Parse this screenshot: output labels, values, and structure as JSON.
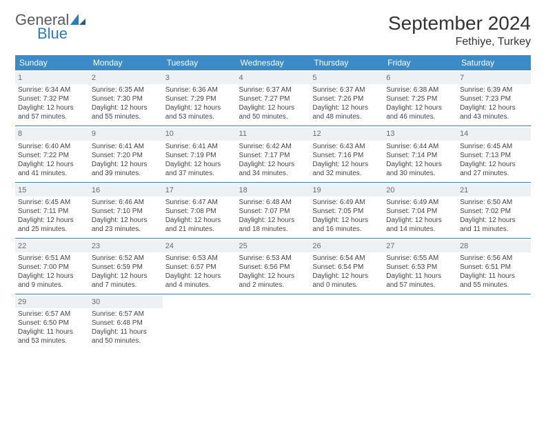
{
  "logo": {
    "general": "General",
    "blue": "Blue"
  },
  "title": "September 2024",
  "location": "Fethiye, Turkey",
  "colors": {
    "header_bg": "#3b8bc9",
    "header_text": "#ffffff",
    "daynum_bg": "#eef1f3",
    "row_border": "#3b7aa8",
    "logo_gray": "#5a5a5a",
    "logo_blue": "#2b7bbf"
  },
  "weekdays": [
    "Sunday",
    "Monday",
    "Tuesday",
    "Wednesday",
    "Thursday",
    "Friday",
    "Saturday"
  ],
  "weeks": [
    [
      {
        "day": "1",
        "sunrise": "Sunrise: 6:34 AM",
        "sunset": "Sunset: 7:32 PM",
        "dl1": "Daylight: 12 hours",
        "dl2": "and 57 minutes."
      },
      {
        "day": "2",
        "sunrise": "Sunrise: 6:35 AM",
        "sunset": "Sunset: 7:30 PM",
        "dl1": "Daylight: 12 hours",
        "dl2": "and 55 minutes."
      },
      {
        "day": "3",
        "sunrise": "Sunrise: 6:36 AM",
        "sunset": "Sunset: 7:29 PM",
        "dl1": "Daylight: 12 hours",
        "dl2": "and 53 minutes."
      },
      {
        "day": "4",
        "sunrise": "Sunrise: 6:37 AM",
        "sunset": "Sunset: 7:27 PM",
        "dl1": "Daylight: 12 hours",
        "dl2": "and 50 minutes."
      },
      {
        "day": "5",
        "sunrise": "Sunrise: 6:37 AM",
        "sunset": "Sunset: 7:26 PM",
        "dl1": "Daylight: 12 hours",
        "dl2": "and 48 minutes."
      },
      {
        "day": "6",
        "sunrise": "Sunrise: 6:38 AM",
        "sunset": "Sunset: 7:25 PM",
        "dl1": "Daylight: 12 hours",
        "dl2": "and 46 minutes."
      },
      {
        "day": "7",
        "sunrise": "Sunrise: 6:39 AM",
        "sunset": "Sunset: 7:23 PM",
        "dl1": "Daylight: 12 hours",
        "dl2": "and 43 minutes."
      }
    ],
    [
      {
        "day": "8",
        "sunrise": "Sunrise: 6:40 AM",
        "sunset": "Sunset: 7:22 PM",
        "dl1": "Daylight: 12 hours",
        "dl2": "and 41 minutes."
      },
      {
        "day": "9",
        "sunrise": "Sunrise: 6:41 AM",
        "sunset": "Sunset: 7:20 PM",
        "dl1": "Daylight: 12 hours",
        "dl2": "and 39 minutes."
      },
      {
        "day": "10",
        "sunrise": "Sunrise: 6:41 AM",
        "sunset": "Sunset: 7:19 PM",
        "dl1": "Daylight: 12 hours",
        "dl2": "and 37 minutes."
      },
      {
        "day": "11",
        "sunrise": "Sunrise: 6:42 AM",
        "sunset": "Sunset: 7:17 PM",
        "dl1": "Daylight: 12 hours",
        "dl2": "and 34 minutes."
      },
      {
        "day": "12",
        "sunrise": "Sunrise: 6:43 AM",
        "sunset": "Sunset: 7:16 PM",
        "dl1": "Daylight: 12 hours",
        "dl2": "and 32 minutes."
      },
      {
        "day": "13",
        "sunrise": "Sunrise: 6:44 AM",
        "sunset": "Sunset: 7:14 PM",
        "dl1": "Daylight: 12 hours",
        "dl2": "and 30 minutes."
      },
      {
        "day": "14",
        "sunrise": "Sunrise: 6:45 AM",
        "sunset": "Sunset: 7:13 PM",
        "dl1": "Daylight: 12 hours",
        "dl2": "and 27 minutes."
      }
    ],
    [
      {
        "day": "15",
        "sunrise": "Sunrise: 6:45 AM",
        "sunset": "Sunset: 7:11 PM",
        "dl1": "Daylight: 12 hours",
        "dl2": "and 25 minutes."
      },
      {
        "day": "16",
        "sunrise": "Sunrise: 6:46 AM",
        "sunset": "Sunset: 7:10 PM",
        "dl1": "Daylight: 12 hours",
        "dl2": "and 23 minutes."
      },
      {
        "day": "17",
        "sunrise": "Sunrise: 6:47 AM",
        "sunset": "Sunset: 7:08 PM",
        "dl1": "Daylight: 12 hours",
        "dl2": "and 21 minutes."
      },
      {
        "day": "18",
        "sunrise": "Sunrise: 6:48 AM",
        "sunset": "Sunset: 7:07 PM",
        "dl1": "Daylight: 12 hours",
        "dl2": "and 18 minutes."
      },
      {
        "day": "19",
        "sunrise": "Sunrise: 6:49 AM",
        "sunset": "Sunset: 7:05 PM",
        "dl1": "Daylight: 12 hours",
        "dl2": "and 16 minutes."
      },
      {
        "day": "20",
        "sunrise": "Sunrise: 6:49 AM",
        "sunset": "Sunset: 7:04 PM",
        "dl1": "Daylight: 12 hours",
        "dl2": "and 14 minutes."
      },
      {
        "day": "21",
        "sunrise": "Sunrise: 6:50 AM",
        "sunset": "Sunset: 7:02 PM",
        "dl1": "Daylight: 12 hours",
        "dl2": "and 11 minutes."
      }
    ],
    [
      {
        "day": "22",
        "sunrise": "Sunrise: 6:51 AM",
        "sunset": "Sunset: 7:00 PM",
        "dl1": "Daylight: 12 hours",
        "dl2": "and 9 minutes."
      },
      {
        "day": "23",
        "sunrise": "Sunrise: 6:52 AM",
        "sunset": "Sunset: 6:59 PM",
        "dl1": "Daylight: 12 hours",
        "dl2": "and 7 minutes."
      },
      {
        "day": "24",
        "sunrise": "Sunrise: 6:53 AM",
        "sunset": "Sunset: 6:57 PM",
        "dl1": "Daylight: 12 hours",
        "dl2": "and 4 minutes."
      },
      {
        "day": "25",
        "sunrise": "Sunrise: 6:53 AM",
        "sunset": "Sunset: 6:56 PM",
        "dl1": "Daylight: 12 hours",
        "dl2": "and 2 minutes."
      },
      {
        "day": "26",
        "sunrise": "Sunrise: 6:54 AM",
        "sunset": "Sunset: 6:54 PM",
        "dl1": "Daylight: 12 hours",
        "dl2": "and 0 minutes."
      },
      {
        "day": "27",
        "sunrise": "Sunrise: 6:55 AM",
        "sunset": "Sunset: 6:53 PM",
        "dl1": "Daylight: 11 hours",
        "dl2": "and 57 minutes."
      },
      {
        "day": "28",
        "sunrise": "Sunrise: 6:56 AM",
        "sunset": "Sunset: 6:51 PM",
        "dl1": "Daylight: 11 hours",
        "dl2": "and 55 minutes."
      }
    ],
    [
      {
        "day": "29",
        "sunrise": "Sunrise: 6:57 AM",
        "sunset": "Sunset: 6:50 PM",
        "dl1": "Daylight: 11 hours",
        "dl2": "and 53 minutes."
      },
      {
        "day": "30",
        "sunrise": "Sunrise: 6:57 AM",
        "sunset": "Sunset: 6:48 PM",
        "dl1": "Daylight: 11 hours",
        "dl2": "and 50 minutes."
      },
      null,
      null,
      null,
      null,
      null
    ]
  ]
}
